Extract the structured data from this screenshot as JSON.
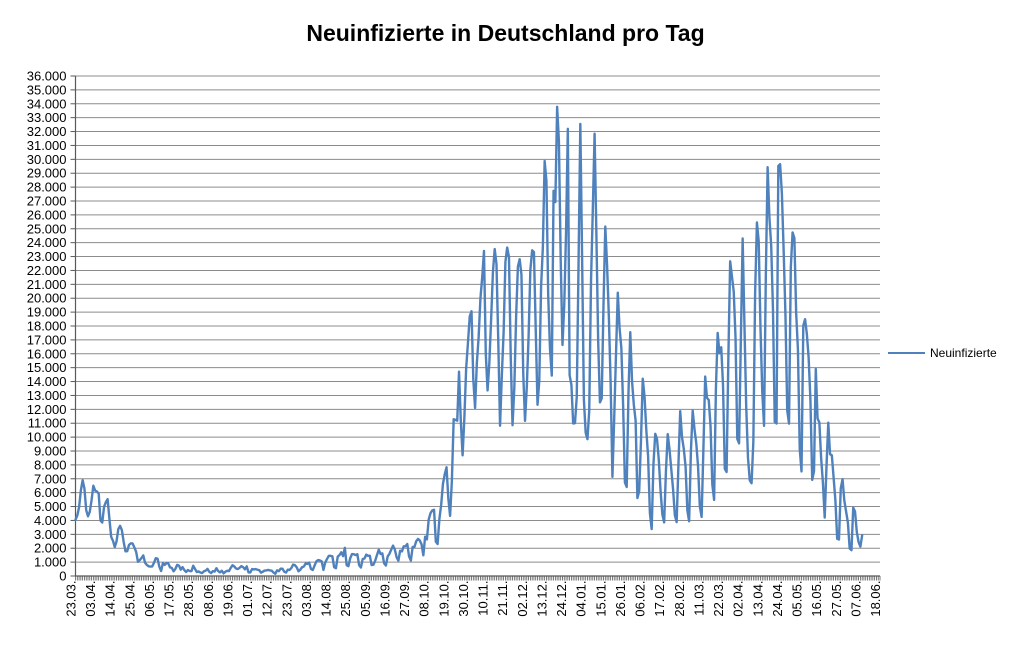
{
  "title": "Neuinfizierte in Deutschland pro Tag",
  "legend": {
    "series_label": "Neuinfizierte"
  },
  "colors": {
    "series": "#4F81BD",
    "gridline": "#8C8C8C",
    "axis": "#595959",
    "text": "#000000",
    "background": "#FFFFFF"
  },
  "chart_data": {
    "type": "line",
    "title": "Neuinfizierte in Deutschland pro Tag",
    "frequency": "daily (pro Tag)",
    "grid": "horizontal-major",
    "legend_position": "right",
    "ylim": [
      0,
      36000
    ],
    "y_major_step": 1000,
    "y_tick_labels": [
      "0",
      "1.000",
      "2.000",
      "3.000",
      "4.000",
      "5.000",
      "6.000",
      "7.000",
      "8.000",
      "9.000",
      "10.000",
      "11.000",
      "12.000",
      "13.000",
      "14.000",
      "15.000",
      "16.000",
      "17.000",
      "18.000",
      "19.000",
      "20.000",
      "21.000",
      "22.000",
      "23.000",
      "24.000",
      "25.000",
      "26.000",
      "27.000",
      "28.000",
      "29.000",
      "30.000",
      "31.000",
      "32.000",
      "33.000",
      "34.000",
      "35.000",
      "36.000"
    ],
    "x_tick_labels": [
      "23.03.",
      "03.04.",
      "14.04.",
      "25.04.",
      "06.05.",
      "17.05.",
      "28.05.",
      "08.06.",
      "19.06.",
      "01.07.",
      "12.07.",
      "23.07.",
      "03.08.",
      "14.08.",
      "25.08.",
      "05.09.",
      "16.09.",
      "27.09.",
      "08.10.",
      "19.10.",
      "30.10.",
      "10.11.",
      "21.11.",
      "02.12.",
      "13.12.",
      "24.12.",
      "04.01.",
      "15.01.",
      "26.01.",
      "06.02.",
      "17.02.",
      "28.02.",
      "11.03.",
      "22.03.",
      "02.04.",
      "13.04.",
      "24.04.",
      "05.05.",
      "16.05.",
      "27.05.",
      "07.06.",
      "18.06."
    ],
    "x_tick_interval_points": 11,
    "x_total_slots": 452,
    "series": [
      {
        "name": "Neuinfizierte",
        "first_point_label": "23.03.",
        "values": [
          4050,
          4350,
          4950,
          6160,
          6900,
          6300,
          4750,
          4300,
          4620,
          5450,
          6500,
          6160,
          6080,
          5940,
          4000,
          3850,
          4970,
          5320,
          5530,
          4130,
          2820,
          2540,
          2080,
          2490,
          3380,
          3610,
          3300,
          2460,
          1780,
          1790,
          2240,
          2350,
          2340,
          2060,
          1740,
          1020,
          1140,
          1300,
          1480,
          950,
          790,
          700,
          680,
          690,
          950,
          1280,
          1250,
          670,
          360,
          930,
          800,
          930,
          910,
          620,
          580,
          340,
          510,
          800,
          750,
          460,
          640,
          430,
          290,
          430,
          360,
          350,
          740,
          510,
          290,
          330,
          250,
          210,
          340,
          390,
          510,
          300,
          210,
          350,
          320,
          560,
          350,
          260,
          380,
          190,
          300,
          380,
          350,
          580,
          770,
          690,
          540,
          500,
          590,
          710,
          630,
          480,
          690,
          260,
          260,
          500,
          470,
          500,
          450,
          420,
          240,
          310,
          390,
          400,
          440,
          400,
          380,
          250,
          160,
          410,
          350,
          530,
          530,
          310,
          250,
          450,
          440,
          570,
          820,
          780,
          630,
          340,
          450,
          630,
          680,
          900,
          870,
          960,
          510,
          430,
          740,
          1050,
          1150,
          1120,
          1060,
          440,
          970,
          1230,
          1450,
          1450,
          1420,
          630,
          560,
          1390,
          1510,
          1710,
          1430,
          2030,
          780,
          710,
          1280,
          1580,
          1570,
          1510,
          1570,
          780,
          610,
          1220,
          1260,
          1540,
          1450,
          1460,
          790,
          810,
          1100,
          1500,
          1890,
          1590,
          1630,
          920,
          750,
          1410,
          1600,
          1900,
          2190,
          1920,
          1350,
          1100,
          1820,
          1770,
          2140,
          2150,
          2300,
          1410,
          1110,
          2090,
          2090,
          2500,
          2670,
          2560,
          2280,
          1490,
          2830,
          2640,
          4060,
          4520,
          4720,
          4770,
          2470,
          2300,
          4120,
          5130,
          6640,
          7330,
          7830,
          5590,
          4330,
          6870,
          11290,
          11240,
          11180,
          14710,
          11180,
          8690,
          11410,
          14960,
          16770,
          18680,
          19060,
          14180,
          12100,
          15350,
          17210,
          19990,
          21510,
          23400,
          16020,
          13360,
          15330,
          18490,
          21870,
          23540,
          22460,
          16950,
          10820,
          14420,
          17560,
          22610,
          23650,
          22960,
          15740,
          10860,
          13550,
          18630,
          22270,
          22810,
          21700,
          14610,
          11170,
          13600,
          17270,
          22050,
          23450,
          23320,
          17770,
          12330,
          14060,
          20820,
          23680,
          29880,
          28440,
          20200,
          16360,
          14430,
          27730,
          26920,
          33780,
          31300,
          22770,
          16640,
          19530,
          24740,
          32200,
          14460,
          13760,
          10980,
          11000,
          12890,
          22460,
          32550,
          22920,
          12690,
          10320,
          9850,
          11900,
          21240,
          26390,
          31850,
          24690,
          16950,
          12500,
          12800,
          19600,
          25160,
          22370,
          18680,
          13880,
          7140,
          11370,
          15970,
          20400,
          17860,
          16420,
          12260,
          6730,
          6410,
          13200,
          17550,
          14020,
          12320,
          11190,
          5610,
          6110,
          9710,
          14210,
          12910,
          10490,
          8620,
          4540,
          3380,
          8070,
          10240,
          9860,
          8350,
          6110,
          4430,
          3860,
          7560,
          10210,
          9110,
          7680,
          6240,
          4370,
          3880,
          8010,
          11870,
          10000,
          9160,
          7890,
          4730,
          3940,
          9020,
          11910,
          10580,
          9560,
          7890,
          5010,
          4250,
          9150,
          14360,
          12830,
          12670,
          10790,
          6600,
          5480,
          13440,
          17500,
          16030,
          16470,
          13730,
          7710,
          7490,
          15810,
          22660,
          21570,
          20470,
          17180,
          9870,
          9550,
          17050,
          24300,
          18130,
          12200,
          8500,
          6890,
          6680,
          9680,
          20410,
          25460,
          24100,
          17860,
          13250,
          10810,
          21690,
          29430,
          25830,
          23800,
          19190,
          11100,
          10980,
          29520,
          29650,
          27540,
          23390,
          18770,
          11910,
          10970,
          22230,
          24740,
          24330,
          18940,
          16290,
          9160,
          7530,
          18030,
          18490,
          17420,
          15690,
          12660,
          6920,
          7540,
          14910,
          11340,
          11060,
          8500,
          6710,
          4210,
          7890,
          11040,
          8770,
          8690,
          7080,
          5430,
          2680,
          2630,
          6310,
          6970,
          5430,
          4640,
          3850,
          1980,
          1860,
          4920,
          4640,
          3170,
          2440,
          2110,
          2930
        ]
      }
    ]
  }
}
